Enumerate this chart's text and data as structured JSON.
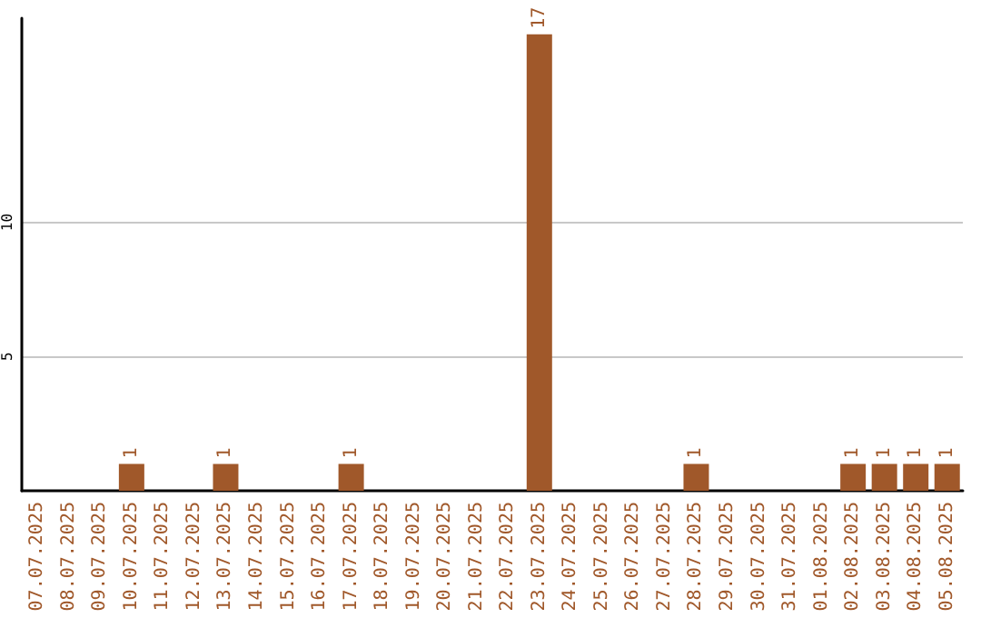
{
  "chart_data": {
    "type": "bar",
    "categories": [
      "07.07.2025",
      "08.07.2025",
      "09.07.2025",
      "10.07.2025",
      "11.07.2025",
      "12.07.2025",
      "13.07.2025",
      "14.07.2025",
      "15.07.2025",
      "16.07.2025",
      "17.07.2025",
      "18.07.2025",
      "19.07.2025",
      "20.07.2025",
      "21.07.2025",
      "22.07.2025",
      "23.07.2025",
      "24.07.2025",
      "25.07.2025",
      "26.07.2025",
      "27.07.2025",
      "28.07.2025",
      "29.07.2025",
      "30.07.2025",
      "31.07.2025",
      "01.08.2025",
      "02.08.2025",
      "03.08.2025",
      "04.08.2025",
      "05.08.2025"
    ],
    "values": [
      0,
      0,
      0,
      1,
      0,
      0,
      1,
      0,
      0,
      0,
      1,
      0,
      0,
      0,
      0,
      0,
      17,
      0,
      0,
      0,
      0,
      1,
      0,
      0,
      0,
      0,
      1,
      1,
      1,
      1
    ],
    "value_labels": [
      null,
      null,
      null,
      "1",
      null,
      null,
      "1",
      null,
      null,
      null,
      "1",
      null,
      null,
      null,
      null,
      null,
      "17",
      null,
      null,
      null,
      null,
      "1",
      null,
      null,
      null,
      null,
      "1",
      "1",
      "1",
      "1"
    ],
    "color": "#a0582a",
    "ylim": [
      0,
      17.6
    ],
    "yticks": [
      5,
      10
    ],
    "grid": "y"
  }
}
